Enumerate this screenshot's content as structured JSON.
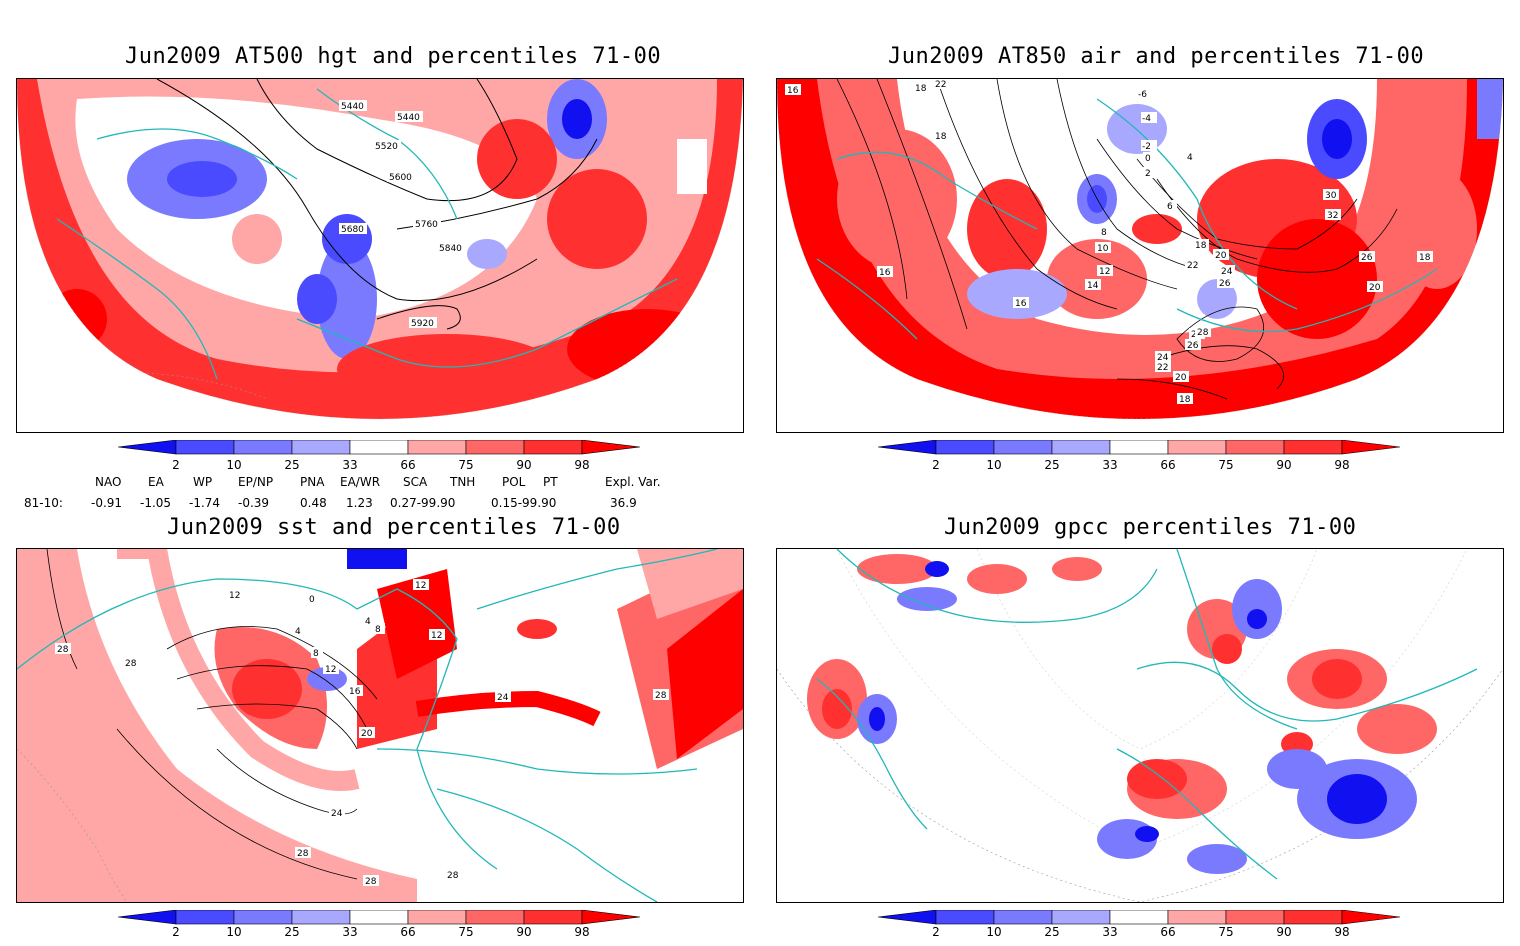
{
  "panels": [
    {
      "title": "Jun2009 AT500 hgt and percentiles 71-00",
      "contour_labels": [
        "5440",
        "5440",
        "5520",
        "5600",
        "5680",
        "5760",
        "5840",
        "5920"
      ]
    },
    {
      "title": "Jun2009 AT850 air and percentiles 71-00",
      "contour_labels": [
        "16",
        "22",
        "18",
        "18",
        "-6",
        "-4",
        "-2",
        "0",
        "2",
        "4",
        "6",
        "8",
        "10",
        "12",
        "14",
        "16",
        "18",
        "20",
        "22",
        "24",
        "26",
        "28",
        "30",
        "32",
        "26",
        "20",
        "18",
        "16",
        "28",
        "26",
        "24",
        "22",
        "20",
        "18"
      ]
    },
    {
      "title": "Jun2009 sst and percentiles 71-00",
      "contour_labels": [
        "28",
        "12",
        "4",
        "0",
        "4",
        "8",
        "12",
        "12",
        "8",
        "12",
        "16",
        "20",
        "24",
        "28",
        "28",
        "28",
        "24",
        "28",
        "28"
      ]
    },
    {
      "title": "Jun2009 gpcc percentiles 71-00",
      "contour_labels": []
    }
  ],
  "colorbar": {
    "ticks": [
      "2",
      "10",
      "25",
      "33",
      "66",
      "75",
      "90",
      "98"
    ],
    "colors": {
      "deep_blue": "#1010f0",
      "blue": "#4a4aff",
      "mid_blue": "#7a7aff",
      "light_blue": "#a8a8ff",
      "light_red": "#ffa6a6",
      "mid_red": "#ff6666",
      "red": "#ff3030",
      "deep_red": "#ff0000"
    }
  },
  "indices": {
    "headers": [
      "NAO",
      "EA",
      "WP",
      "EP/NP",
      "PNA",
      "EA/WR",
      "SCA",
      "TNH",
      "POL",
      "PT",
      "Expl. Var."
    ],
    "row_label": "81-10:",
    "values": [
      "-0.91",
      "-1.05",
      "-1.74",
      "-0.39",
      "0.48",
      "1.23",
      "0.27-99.90",
      "",
      "0.15-99.90",
      "",
      "36.9"
    ]
  },
  "map_style": {
    "coast_color": "#22b8b8",
    "grid_color": "#999999",
    "contour_color": "#000000"
  }
}
